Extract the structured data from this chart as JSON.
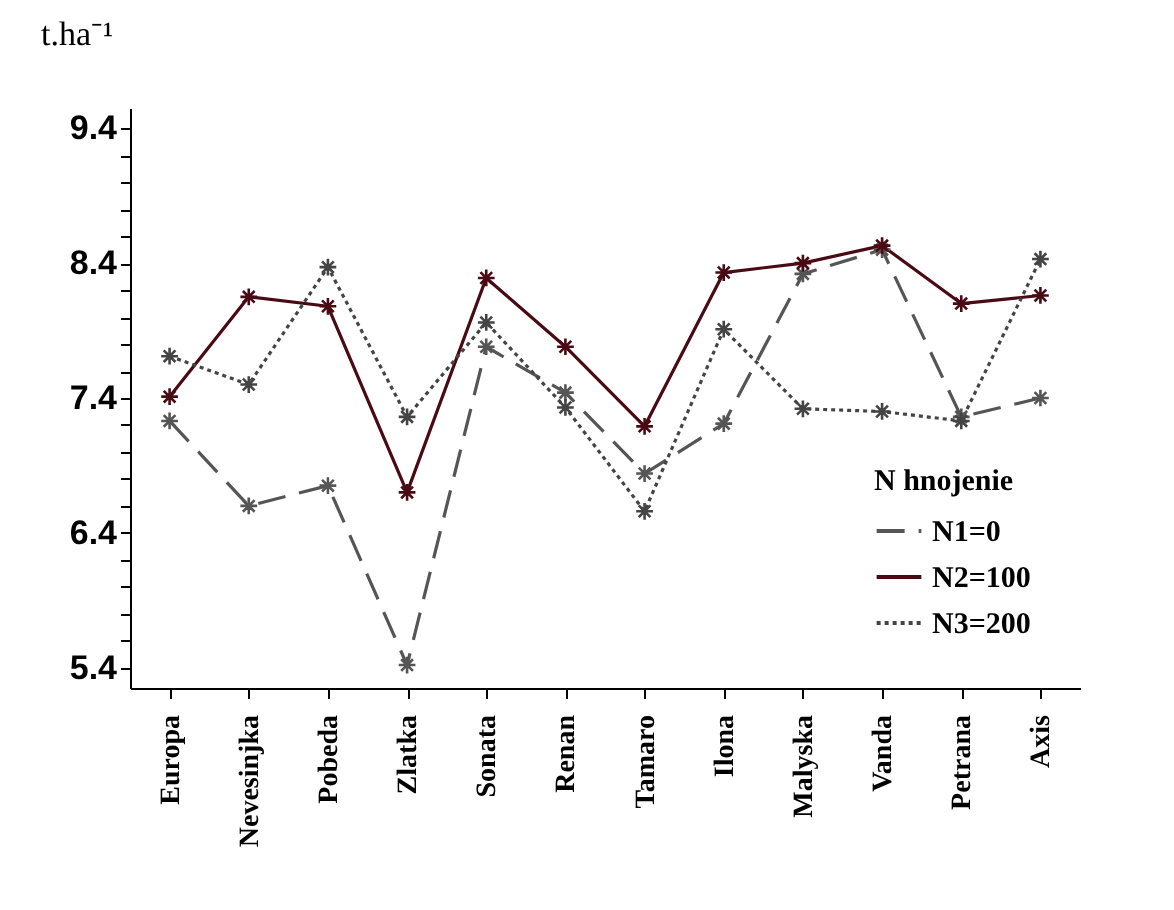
{
  "chart_data": {
    "type": "line",
    "ylabel": "t.ha⁻¹",
    "legend_title": "N hnojenie",
    "legend": "bottom right",
    "marker": "cross",
    "grid": false,
    "categories": [
      "Europa",
      "Nevesinjka",
      "Pobeda",
      "Zlatka",
      "Sonata",
      "Renan",
      "Tamaro",
      "Ilona",
      "Malyska",
      "Vanda",
      "Petrana",
      "Axis"
    ],
    "ylim": [
      5.25,
      9.55
    ],
    "yticks": [
      {
        "value": 5.4,
        "label": "5.4"
      },
      {
        "value": 5.6,
        "label": null
      },
      {
        "value": 5.8,
        "label": null
      },
      {
        "value": 6,
        "label": null
      },
      {
        "value": 6.2,
        "label": null
      },
      {
        "value": 6.4,
        "label": "6.4"
      },
      {
        "value": 6.6,
        "label": null
      },
      {
        "value": 6.8,
        "label": null
      },
      {
        "value": 7,
        "label": null
      },
      {
        "value": 7.2,
        "label": null
      },
      {
        "value": 7.4,
        "label": "7.4"
      },
      {
        "value": 7.6,
        "label": null
      },
      {
        "value": 7.8,
        "label": null
      },
      {
        "value": 8,
        "label": null
      },
      {
        "value": 8.2,
        "label": null
      },
      {
        "value": 8.4,
        "label": "8.4"
      },
      {
        "value": 8.6,
        "label": null
      },
      {
        "value": 8.8,
        "label": null
      },
      {
        "value": 9,
        "label": null
      },
      {
        "value": 9.2,
        "label": null
      },
      {
        "value": 9.4,
        "label": "9.4"
      }
    ],
    "series": [
      {
        "name": "N1=0",
        "color": "#555555",
        "line_style": "dashed",
        "values": [
          7.23,
          6.6,
          6.75,
          5.42,
          7.78,
          7.44,
          6.84,
          7.21,
          8.32,
          8.5,
          7.26,
          7.4
        ]
      },
      {
        "name": "N2=100",
        "color": "#4a0a14",
        "line_style": "solid",
        "values": [
          7.41,
          8.15,
          8.08,
          6.7,
          8.29,
          7.78,
          7.19,
          8.33,
          8.4,
          8.53,
          8.1,
          8.16
        ]
      },
      {
        "name": "N3=200",
        "color": "#444444",
        "line_style": "dotted",
        "values": [
          7.71,
          7.5,
          8.37,
          7.26,
          7.96,
          7.33,
          6.56,
          7.91,
          7.32,
          7.3,
          7.23,
          8.43
        ]
      }
    ]
  }
}
